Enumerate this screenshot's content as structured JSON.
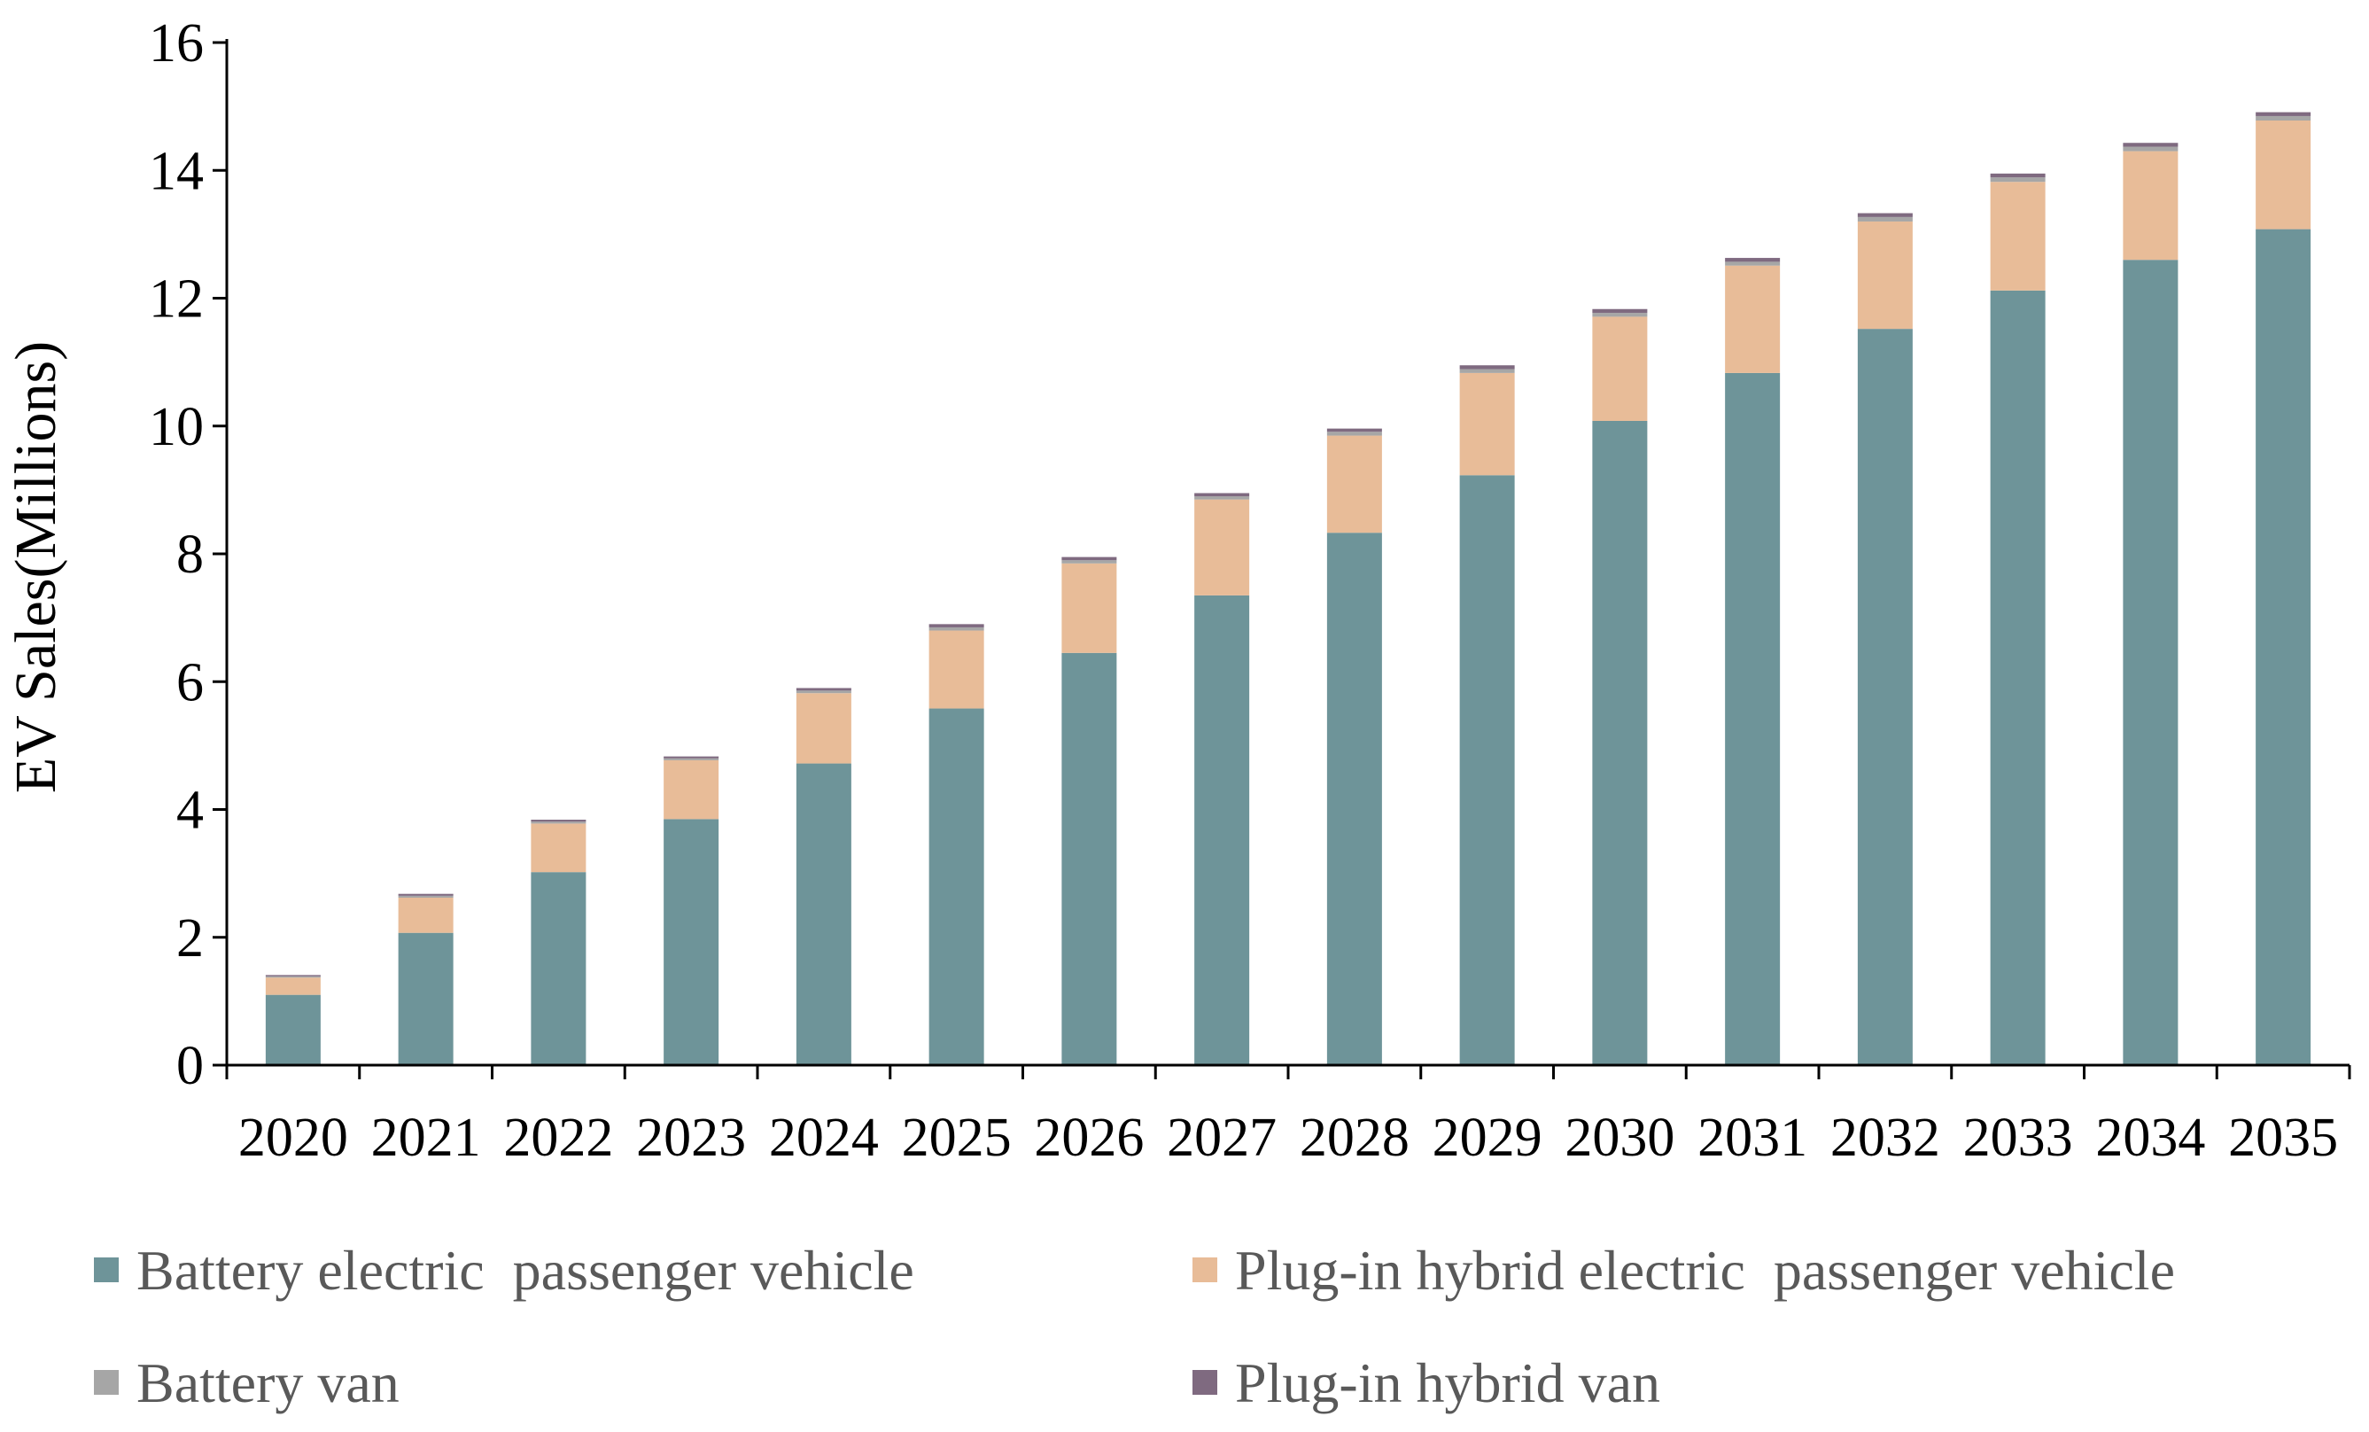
{
  "chart_data": {
    "type": "bar",
    "stacked": true,
    "title": "",
    "xlabel": "",
    "ylabel": "EV Sales(Millions)",
    "ylim": [
      0,
      16
    ],
    "yticks": [
      "0",
      "2",
      "4",
      "6",
      "8",
      "10",
      "12",
      "14",
      "16"
    ],
    "grid": false,
    "legend_position": "bottom",
    "categories": [
      "2020",
      "2021",
      "2022",
      "2023",
      "2024",
      "2025",
      "2026",
      "2027",
      "2028",
      "2029",
      "2030",
      "2031",
      "2032",
      "2033",
      "2034",
      "2035"
    ],
    "series": [
      {
        "name": "Battery electric  passenger vehicle",
        "color": "#6e9499",
        "values": [
          1.1,
          2.07,
          3.02,
          3.85,
          4.72,
          5.58,
          6.45,
          7.35,
          8.33,
          9.23,
          10.08,
          10.83,
          11.52,
          12.12,
          12.6,
          13.08
        ]
      },
      {
        "name": "Plug-in hybrid electric  passenger vehicle",
        "color": "#e8bc98",
        "values": [
          0.27,
          0.55,
          0.76,
          0.92,
          1.1,
          1.22,
          1.4,
          1.5,
          1.52,
          1.6,
          1.63,
          1.68,
          1.68,
          1.7,
          1.7,
          1.7
        ]
      },
      {
        "name": "Battery van",
        "color": "#a6a6a6",
        "values": [
          0.02,
          0.03,
          0.03,
          0.03,
          0.04,
          0.05,
          0.05,
          0.05,
          0.06,
          0.06,
          0.06,
          0.06,
          0.07,
          0.07,
          0.07,
          0.07
        ]
      },
      {
        "name": "Plug-in hybrid van",
        "color": "#7f6a80",
        "values": [
          0.02,
          0.03,
          0.03,
          0.03,
          0.04,
          0.05,
          0.05,
          0.05,
          0.05,
          0.06,
          0.06,
          0.06,
          0.06,
          0.06,
          0.06,
          0.06
        ]
      }
    ]
  }
}
